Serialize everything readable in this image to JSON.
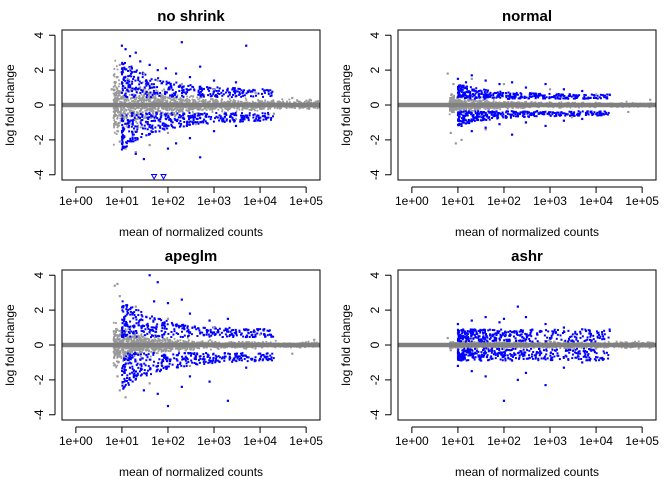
{
  "colors": {
    "nonsig": "#999999",
    "sig": "#0000ff",
    "ref_line": "#808080",
    "frame": "#000000"
  },
  "chart_data": [
    {
      "type": "scatter",
      "title": "no shrink",
      "xlabel": "mean of normalized counts",
      "ylabel": "log fold change",
      "xscale": "log10",
      "xlim": [
        0.5,
        200000
      ],
      "ylim": [
        -4.3,
        4.3
      ],
      "hline": 0,
      "grid": false,
      "x_ticks": [
        1,
        10,
        100,
        1000,
        10000,
        100000
      ],
      "x_tick_labels": [
        "1e+00",
        "1e+01",
        "1e+02",
        "1e+03",
        "1e+04",
        "1e+05"
      ],
      "y_ticks": [
        -4,
        -2,
        0,
        2,
        4
      ],
      "y_tick_labels": [
        "-4",
        "-2",
        "0",
        "2",
        "4"
      ],
      "series": [
        {
          "color_key": "nonsig",
          "points": [
            [
              6,
              0.9
            ],
            [
              7,
              -1.1
            ],
            [
              8,
              1.6
            ],
            [
              8,
              -1.5
            ],
            [
              9,
              2.3
            ],
            [
              9,
              -2.1
            ],
            [
              12,
              -2.5
            ],
            [
              15,
              2.1
            ],
            [
              20,
              -2.7
            ],
            [
              30,
              1.8
            ],
            [
              40,
              -2.3
            ],
            [
              60,
              1.4
            ],
            [
              100,
              -1.6
            ],
            [
              200,
              1.2
            ],
            [
              400,
              -1.1
            ],
            [
              1000,
              0.9
            ],
            [
              3000,
              -0.8
            ],
            [
              8000,
              0.7
            ],
            [
              20000,
              -0.5
            ],
            [
              50000,
              0.4
            ],
            [
              120000,
              0.3
            ]
          ]
        },
        {
          "color_key": "sig",
          "points": [
            [
              10,
              3.4
            ],
            [
              12,
              3.2
            ],
            [
              15,
              2.8
            ],
            [
              20,
              3.0
            ],
            [
              25,
              2.5
            ],
            [
              40,
              2.3
            ],
            [
              60,
              2.0
            ],
            [
              90,
              2.1
            ],
            [
              150,
              1.8
            ],
            [
              200,
              3.6
            ],
            [
              300,
              1.6
            ],
            [
              500,
              2.2
            ],
            [
              1000,
              1.4
            ],
            [
              3000,
              1.3
            ],
            [
              5000,
              3.4
            ],
            [
              12,
              -2.4
            ],
            [
              20,
              -2.8
            ],
            [
              30,
              -3.1
            ],
            [
              50,
              -4.1
            ],
            [
              80,
              -4.1
            ],
            [
              100,
              -2.5
            ],
            [
              150,
              -2.2
            ],
            [
              300,
              -1.9
            ],
            [
              500,
              -3.0
            ],
            [
              1000,
              -1.5
            ],
            [
              3000,
              -1.2
            ],
            [
              10000,
              -0.9
            ]
          ]
        }
      ]
    },
    {
      "type": "scatter",
      "title": "normal",
      "xlabel": "mean of normalized counts",
      "ylabel": "log fold change",
      "xscale": "log10",
      "xlim": [
        0.5,
        200000
      ],
      "ylim": [
        -4.3,
        4.3
      ],
      "hline": 0,
      "grid": false,
      "x_ticks": [
        1,
        10,
        100,
        1000,
        10000,
        100000
      ],
      "x_tick_labels": [
        "1e+00",
        "1e+01",
        "1e+02",
        "1e+03",
        "1e+04",
        "1e+05"
      ],
      "y_ticks": [
        -4,
        -2,
        0,
        2,
        4
      ],
      "y_tick_labels": [
        "-4",
        "-2",
        "0",
        "2",
        "4"
      ],
      "series": [
        {
          "color_key": "nonsig",
          "points": [
            [
              6,
              1.8
            ],
            [
              7,
              -1.6
            ],
            [
              8,
              1.2
            ],
            [
              9,
              -2.2
            ],
            [
              12,
              -2.0
            ],
            [
              20,
              1.5
            ],
            [
              40,
              -1.4
            ],
            [
              100,
              1.2
            ],
            [
              300,
              -1.0
            ],
            [
              1000,
              0.9
            ],
            [
              3000,
              -0.7
            ],
            [
              10000,
              0.6
            ],
            [
              50000,
              -0.4
            ],
            [
              150000,
              0.3
            ]
          ]
        },
        {
          "color_key": "sig",
          "points": [
            [
              10,
              1.5
            ],
            [
              15,
              1.3
            ],
            [
              20,
              1.7
            ],
            [
              40,
              1.4
            ],
            [
              80,
              1.2
            ],
            [
              150,
              1.3
            ],
            [
              300,
              1.0
            ],
            [
              800,
              1.2
            ],
            [
              2000,
              0.9
            ],
            [
              5000,
              0.8
            ],
            [
              12,
              -1.2
            ],
            [
              20,
              -1.5
            ],
            [
              40,
              -1.3
            ],
            [
              80,
              -1.1
            ],
            [
              150,
              -1.7
            ],
            [
              300,
              -1.0
            ],
            [
              800,
              -1.2
            ],
            [
              2000,
              -0.9
            ],
            [
              5000,
              -0.8
            ]
          ]
        }
      ]
    },
    {
      "type": "scatter",
      "title": "apeglm",
      "xlabel": "mean of normalized counts",
      "ylabel": "log fold change",
      "xscale": "log10",
      "xlim": [
        0.5,
        200000
      ],
      "ylim": [
        -4.3,
        4.3
      ],
      "hline": 0,
      "grid": false,
      "x_ticks": [
        1,
        10,
        100,
        1000,
        10000,
        100000
      ],
      "x_tick_labels": [
        "1e+00",
        "1e+01",
        "1e+02",
        "1e+03",
        "1e+04",
        "1e+05"
      ],
      "y_ticks": [
        -4,
        -2,
        0,
        2,
        4
      ],
      "y_tick_labels": [
        "-4",
        "-2",
        "0",
        "2",
        "4"
      ],
      "series": [
        {
          "color_key": "nonsig",
          "points": [
            [
              7,
              3.4
            ],
            [
              8,
              3.5
            ],
            [
              8,
              -1.8
            ],
            [
              9,
              2.8
            ],
            [
              9,
              -2.6
            ],
            [
              12,
              -3.0
            ],
            [
              20,
              2.2
            ],
            [
              40,
              -2.2
            ],
            [
              100,
              1.5
            ],
            [
              300,
              -1.2
            ],
            [
              1000,
              1.0
            ],
            [
              3000,
              -0.8
            ],
            [
              10000,
              0.6
            ],
            [
              50000,
              -0.5
            ],
            [
              150000,
              0.3
            ]
          ]
        },
        {
          "color_key": "sig",
          "points": [
            [
              40,
              4.0
            ],
            [
              50,
              2.5
            ],
            [
              60,
              3.6
            ],
            [
              100,
              2.4
            ],
            [
              200,
              2.6
            ],
            [
              300,
              1.8
            ],
            [
              800,
              1.4
            ],
            [
              2000,
              1.5
            ],
            [
              5000,
              0.9
            ],
            [
              12,
              1.2
            ],
            [
              20,
              1.6
            ],
            [
              15,
              -1.3
            ],
            [
              30,
              -2.6
            ],
            [
              60,
              -2.8
            ],
            [
              100,
              -3.5
            ],
            [
              200,
              -2.4
            ],
            [
              300,
              -1.8
            ],
            [
              800,
              -2.1
            ],
            [
              2000,
              -3.2
            ],
            [
              5000,
              -1.3
            ],
            [
              10000,
              -0.8
            ]
          ]
        }
      ]
    },
    {
      "type": "scatter",
      "title": "ashr",
      "xlabel": "mean of normalized counts",
      "ylabel": "log fold change",
      "xscale": "log10",
      "xlim": [
        0.5,
        200000
      ],
      "ylim": [
        -4.3,
        4.3
      ],
      "hline": 0,
      "grid": false,
      "x_ticks": [
        1,
        10,
        100,
        1000,
        10000,
        100000
      ],
      "x_tick_labels": [
        "1e+00",
        "1e+01",
        "1e+02",
        "1e+03",
        "1e+04",
        "1e+05"
      ],
      "y_ticks": [
        -4,
        -2,
        0,
        2,
        4
      ],
      "y_tick_labels": [
        "-4",
        "-2",
        "0",
        "2",
        "4"
      ],
      "series": [
        {
          "color_key": "nonsig",
          "points": [
            [
              6,
              0.4
            ],
            [
              7,
              -0.3
            ],
            [
              20,
              0.3
            ],
            [
              100,
              -0.2
            ],
            [
              1000,
              0.2
            ],
            [
              10000,
              -0.2
            ],
            [
              100000,
              0.1
            ]
          ]
        },
        {
          "color_key": "sig",
          "points": [
            [
              10,
              1.2
            ],
            [
              20,
              1.4
            ],
            [
              40,
              1.6
            ],
            [
              80,
              1.3
            ],
            [
              100,
              1.5
            ],
            [
              200,
              2.2
            ],
            [
              300,
              1.6
            ],
            [
              800,
              1.2
            ],
            [
              2000,
              1.0
            ],
            [
              5000,
              0.9
            ],
            [
              10,
              -1.2
            ],
            [
              20,
              -1.5
            ],
            [
              40,
              -1.8
            ],
            [
              100,
              -3.2
            ],
            [
              200,
              -2.0
            ],
            [
              300,
              -1.6
            ],
            [
              800,
              -2.3
            ],
            [
              2000,
              -1.3
            ],
            [
              5000,
              -1.0
            ],
            [
              10000,
              -0.7
            ]
          ]
        }
      ]
    }
  ]
}
